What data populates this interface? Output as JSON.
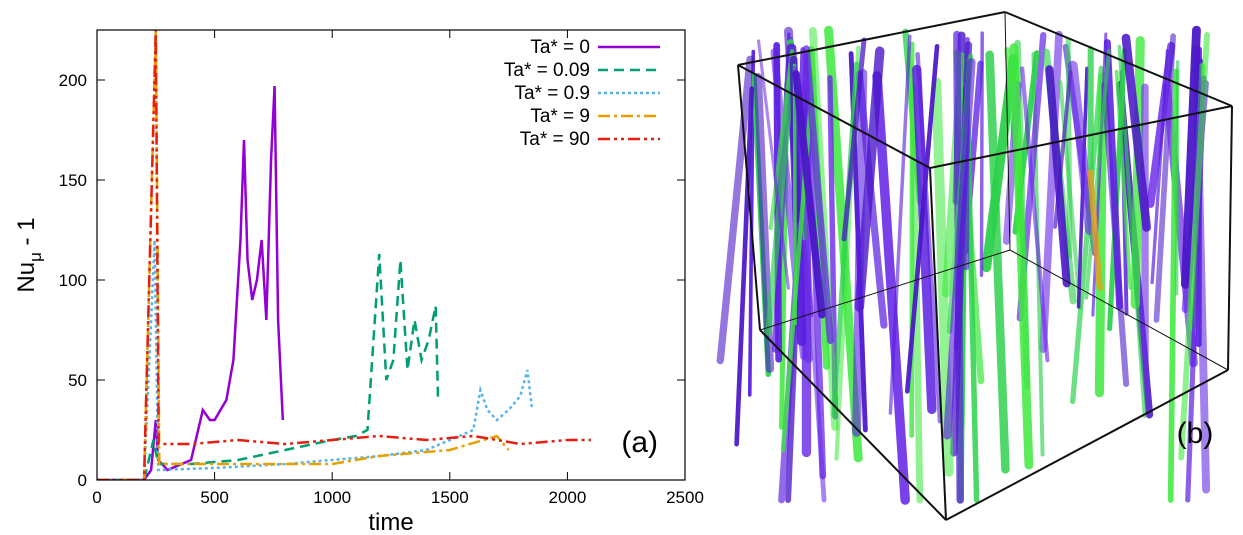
{
  "chart_data": {
    "type": "line",
    "xlabel": "time",
    "ylabel": {
      "main": "Nu",
      "sub": "μ",
      "rest": " - 1"
    },
    "annotation": "(a)",
    "xlim": [
      0,
      2500
    ],
    "xticks": [
      0,
      500,
      1000,
      1500,
      2000,
      2500
    ],
    "ylim": [
      0,
      225
    ],
    "yticks": [
      0,
      50,
      100,
      150,
      200
    ],
    "legend": "top-right",
    "series": [
      {
        "name": "Ta* = 0",
        "color": "#9400d3",
        "dash": "solid",
        "x": [
          0,
          200,
          230,
          250,
          260,
          300,
          400,
          450,
          480,
          500,
          550,
          580,
          610,
          625,
          640,
          660,
          680,
          700,
          720,
          740,
          755,
          770,
          790
        ],
        "values": [
          0,
          0,
          5,
          30,
          10,
          5,
          10,
          35,
          30,
          30,
          40,
          60,
          120,
          170,
          110,
          90,
          100,
          120,
          80,
          160,
          197,
          80,
          30
        ]
      },
      {
        "name": "Ta* = 0.09",
        "color": "#009e73",
        "dash": "dashed",
        "x": [
          0,
          200,
          240,
          260,
          400,
          600,
          800,
          1000,
          1100,
          1150,
          1200,
          1230,
          1260,
          1290,
          1320,
          1350,
          1380,
          1410,
          1440,
          1450
        ],
        "values": [
          0,
          0,
          20,
          8,
          8,
          10,
          15,
          20,
          22,
          25,
          113,
          50,
          60,
          110,
          55,
          80,
          60,
          70,
          87,
          40
        ]
      },
      {
        "name": "Ta* = 0.9",
        "color": "#56b4e9",
        "dash": "dotted",
        "x": [
          0,
          200,
          245,
          260,
          500,
          800,
          1000,
          1200,
          1400,
          1600,
          1630,
          1660,
          1700,
          1750,
          1800,
          1830,
          1850
        ],
        "values": [
          0,
          0,
          120,
          5,
          6,
          8,
          10,
          12,
          15,
          25,
          45,
          35,
          30,
          35,
          42,
          55,
          35
        ]
      },
      {
        "name": "Ta* = 9",
        "color": "#e69f00",
        "dash": "dashdot",
        "x": [
          0,
          200,
          250,
          265,
          500,
          800,
          1000,
          1200,
          1500,
          1700,
          1750
        ],
        "values": [
          0,
          0,
          225,
          8,
          8,
          8,
          8,
          12,
          15,
          22,
          15
        ]
      },
      {
        "name": "Ta* = 90",
        "color": "#e51e10",
        "dash": "dashdotdot",
        "x": [
          0,
          200,
          250,
          262,
          400,
          600,
          800,
          1000,
          1200,
          1400,
          1600,
          1800,
          2000,
          2100
        ],
        "values": [
          0,
          0,
          225,
          18,
          18,
          20,
          18,
          20,
          22,
          20,
          22,
          18,
          20,
          20
        ]
      }
    ]
  },
  "panel_b": {
    "label": "(b)"
  }
}
